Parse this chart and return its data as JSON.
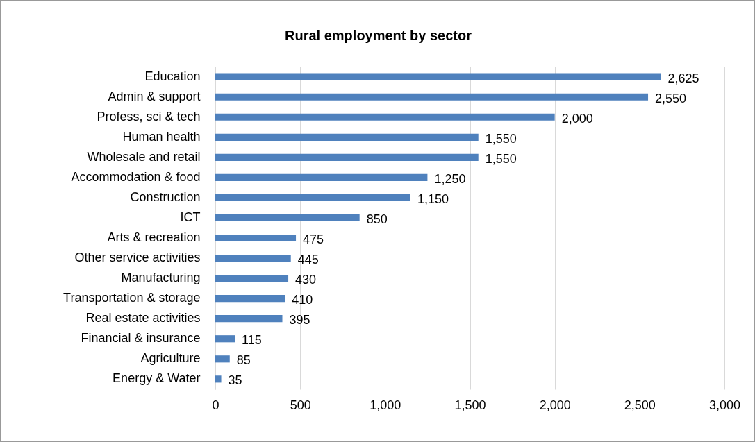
{
  "chart_data": {
    "type": "bar",
    "title": "Rural employment by sector",
    "orientation": "horizontal",
    "categories": [
      "Education",
      "Admin & support",
      "Profess, sci & tech",
      "Human health",
      "Wholesale and retail",
      "Accommodation & food",
      "Construction",
      "ICT",
      "Arts & recreation",
      "Other service activities",
      "Manufacturing",
      "Transportation & storage",
      "Real estate activities",
      "Financial & insurance",
      "Agriculture",
      "Energy & Water"
    ],
    "values": [
      2625,
      2550,
      2000,
      1550,
      1550,
      1250,
      1150,
      850,
      475,
      445,
      430,
      410,
      395,
      115,
      85,
      35
    ],
    "value_labels": [
      "2,625",
      "2,550",
      "2,000",
      "1,550",
      "1,550",
      "1,250",
      "1,150",
      "850",
      "475",
      "445",
      "430",
      "410",
      "395",
      "115",
      "85",
      "35"
    ],
    "color": "#4f81bd",
    "xlim": [
      0,
      3000
    ],
    "xticks": [
      0,
      500,
      {
        "value": 1000,
        "label": "1,000"
      },
      {
        "value": 1500,
        "label": "1,500"
      },
      {
        "value": 2000,
        "label": "2,000"
      },
      {
        "value": 2500,
        "label": "2,500"
      },
      {
        "value": 3000,
        "label": "3,000"
      }
    ],
    "grid": "x"
  }
}
